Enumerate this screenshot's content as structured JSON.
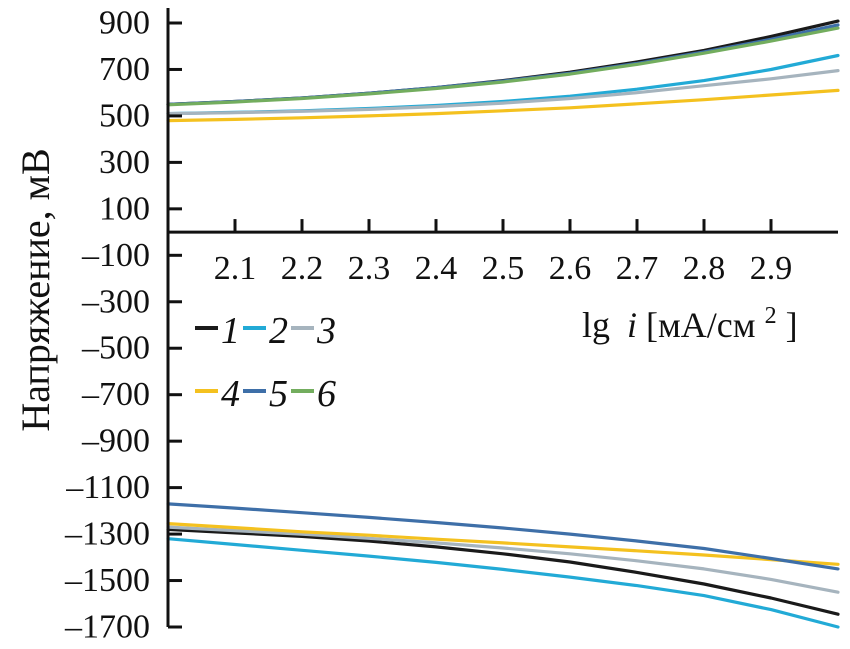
{
  "chart_data": {
    "type": "line",
    "title": "",
    "xlabel": "lg i [мА/см²]",
    "xlabel_parts": {
      "prefix": "lg",
      "var": "i",
      "unit_open": " [мА/см",
      "sup": "2",
      "unit_close": "]"
    },
    "ylabel": "Напряжение, мВ",
    "xlim": [
      2.0,
      3.0
    ],
    "ylim": [
      -1700,
      900
    ],
    "xticks": [
      "2.1",
      "2.2",
      "2.3",
      "2.4",
      "2.5",
      "2.6",
      "2.7",
      "2.8",
      "2.9"
    ],
    "xtick_values": [
      2.1,
      2.2,
      2.3,
      2.4,
      2.5,
      2.6,
      2.7,
      2.8,
      2.9
    ],
    "yticks": [
      "900",
      "700",
      "500",
      "300",
      "100",
      "–100",
      "–300",
      "–500",
      "–700",
      "–900",
      "–1100",
      "–1300",
      "–1500",
      "–1700"
    ],
    "ytick_values": [
      900,
      700,
      500,
      300,
      100,
      -100,
      -300,
      -500,
      -700,
      -900,
      -1100,
      -1300,
      -1500,
      -1700
    ],
    "x": [
      2.0,
      2.1,
      2.2,
      2.3,
      2.4,
      2.5,
      2.6,
      2.7,
      2.8,
      2.9,
      3.0
    ],
    "legend": [
      "1",
      "2",
      "3",
      "4",
      "5",
      "6"
    ],
    "legend_position": "left-middle",
    "series": [
      {
        "name": "1",
        "color": "#1a1a1a",
        "anodic": [
          550,
          562,
          577,
          598,
          622,
          652,
          688,
          732,
          782,
          842,
          908
        ],
        "cathodic": [
          -1280,
          -1295,
          -1310,
          -1330,
          -1355,
          -1385,
          -1420,
          -1465,
          -1515,
          -1575,
          -1645
        ]
      },
      {
        "name": "2",
        "color": "#22aad6",
        "anodic": [
          510,
          515,
          522,
          532,
          545,
          562,
          585,
          615,
          652,
          700,
          760
        ],
        "cathodic": [
          -1320,
          -1345,
          -1370,
          -1395,
          -1422,
          -1452,
          -1485,
          -1522,
          -1565,
          -1625,
          -1700
        ]
      },
      {
        "name": "3",
        "color": "#a6b4be",
        "anodic": [
          510,
          514,
          520,
          528,
          540,
          555,
          575,
          600,
          630,
          660,
          695
        ],
        "cathodic": [
          -1270,
          -1285,
          -1300,
          -1318,
          -1338,
          -1360,
          -1385,
          -1415,
          -1450,
          -1495,
          -1550
        ]
      },
      {
        "name": "4",
        "color": "#f4c11f",
        "anodic": [
          480,
          485,
          492,
          500,
          510,
          522,
          535,
          552,
          570,
          590,
          610
        ],
        "cathodic": [
          -1255,
          -1272,
          -1290,
          -1305,
          -1322,
          -1338,
          -1355,
          -1372,
          -1390,
          -1410,
          -1430
        ]
      },
      {
        "name": "5",
        "color": "#3e6fa8",
        "anodic": [
          550,
          562,
          577,
          598,
          622,
          650,
          684,
          726,
          775,
          830,
          892
        ],
        "cathodic": [
          -1170,
          -1188,
          -1208,
          -1228,
          -1250,
          -1274,
          -1300,
          -1330,
          -1362,
          -1405,
          -1450
        ]
      },
      {
        "name": "6",
        "color": "#73ad5e",
        "anodic": [
          548,
          560,
          575,
          595,
          618,
          646,
          680,
          722,
          770,
          822,
          878
        ],
        "cathodic": []
      }
    ]
  }
}
